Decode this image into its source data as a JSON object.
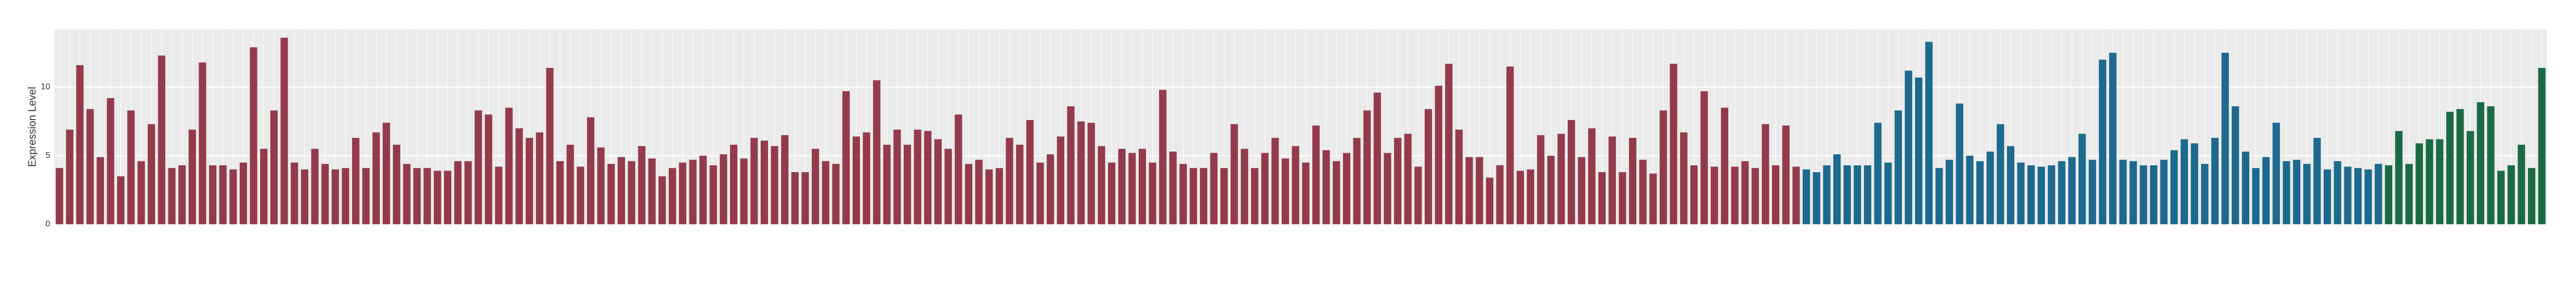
{
  "chart_data": {
    "type": "bar",
    "y_label": "Expression Level",
    "ylim": [
      0,
      14.2
    ],
    "yticks": [
      0,
      5,
      10
    ],
    "grid": true,
    "series": [
      {
        "color": "#943b4b",
        "values": [
          4.1,
          6.9,
          11.6,
          8.4,
          4.9,
          9.2,
          3.5,
          8.3,
          4.6,
          7.3,
          12.3,
          4.1,
          4.3,
          6.9,
          11.8,
          4.3,
          4.3,
          4,
          4.5,
          12.9,
          5.5,
          8.3,
          13.6,
          4.5,
          4,
          5.5,
          4.4,
          4,
          4.1,
          6.3,
          4.1,
          6.7,
          7.4,
          5.8,
          4.4,
          4.1,
          4.1,
          3.9,
          3.9,
          4.6,
          4.6,
          8.3,
          8,
          4.2,
          8.5,
          7,
          6.3,
          6.7,
          11.4,
          4.6,
          5.8,
          4.2,
          7.8,
          5.6,
          4.4,
          4.9,
          4.6,
          5.7,
          4.8,
          3.5,
          4.1,
          4.5,
          4.7,
          5,
          4.3,
          5.1,
          5.8,
          4.8,
          6.3,
          6.1,
          5.7,
          6.5,
          3.8,
          3.8,
          5.5,
          4.6,
          4.4,
          9.7,
          6.4,
          6.7,
          10.5,
          5.8,
          6.9,
          5.8,
          6.9,
          6.8,
          6.2,
          5.5,
          8,
          4.4,
          4.7,
          4,
          4.1,
          6.3,
          5.8,
          7.6,
          4.5,
          5.1,
          6.4,
          8.6,
          7.5,
          7.4,
          5.7,
          4.5,
          5.5,
          5.2,
          5.5,
          4.5,
          9.8,
          5.3,
          4.4,
          4.1,
          4.1,
          5.2,
          4.1,
          7.3,
          5.5,
          4.1,
          5.2,
          6.3,
          4.8,
          5.7,
          4.5,
          7.2,
          5.4,
          4.6,
          5.2,
          6.3,
          8.3,
          9.6,
          5.2,
          6.3,
          6.6,
          4.2,
          8.4,
          10.1,
          11.7,
          6.9,
          4.9,
          4.9,
          3.4,
          4.3,
          11.5,
          3.9,
          4,
          6.5,
          5,
          6.6,
          7.6,
          4.9,
          7,
          3.8,
          6.4,
          3.8,
          6.3,
          4.7,
          3.7,
          8.3,
          11.7,
          6.7,
          4.3,
          9.7,
          4.2,
          8.5,
          4.2,
          4.6,
          4.1,
          7.3,
          4.3,
          7.2,
          4.2
        ]
      },
      {
        "color": "#1d6a8e",
        "values": [
          4,
          3.8,
          4.3,
          5.1,
          4.3,
          4.3,
          4.3,
          7.4,
          4.5,
          8.3,
          11.2,
          10.7,
          13.3,
          4.1,
          4.7,
          8.8,
          5,
          4.6,
          5.3,
          7.3,
          5.7,
          4.5,
          4.3,
          4.2,
          4.3,
          4.6,
          4.9,
          6.6,
          4.7,
          12,
          12.5,
          4.7,
          4.6,
          4.3,
          4.3,
          4.7,
          5.4,
          6.2,
          5.9,
          4.4,
          6.3,
          12.5,
          8.6,
          5.3,
          4.1,
          4.9,
          7.4,
          4.6,
          4.7,
          4.4,
          6.3,
          4,
          4.6,
          4.2,
          4.1,
          4,
          4.4
        ]
      },
      {
        "color": "#1a6b45",
        "values": [
          4.3,
          6.8,
          4.4,
          5.9,
          6.2,
          6.2,
          8.2,
          8.4,
          6.8,
          8.9,
          8.6,
          3.9,
          4.3,
          5.8,
          4.1,
          11.4
        ]
      }
    ]
  }
}
